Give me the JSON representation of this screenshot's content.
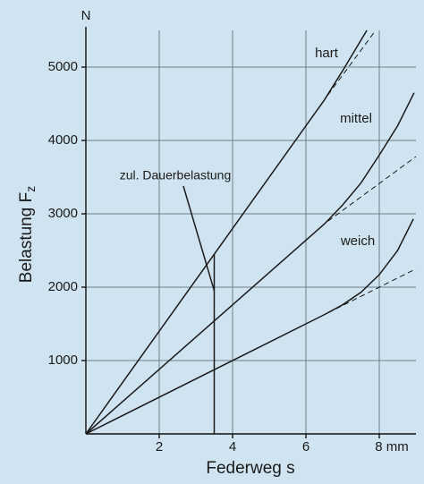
{
  "chart_data": {
    "type": "line",
    "y_unit": "N",
    "x_label": "Federweg s",
    "y_label": "Belastung F",
    "y_label_sub": "z",
    "xlim": [
      0,
      9
    ],
    "ylim": [
      0,
      5500
    ],
    "xticks": [
      2,
      4,
      6,
      {
        "value": 8,
        "label": "8 mm"
      }
    ],
    "yticks": [
      1000,
      2000,
      3000,
      4000,
      5000
    ],
    "grid": true,
    "series": [
      {
        "name": "hart",
        "color": "#1a1a1a",
        "x": [
          0,
          6.5,
          7,
          7.66
        ],
        "values": [
          0,
          4550,
          4950,
          5500
        ],
        "dashed": {
          "x": [
            6.6,
            7.9
          ],
          "values": [
            4620,
            5500
          ]
        }
      },
      {
        "name": "mittel",
        "color": "#1a1a1a",
        "x": [
          0,
          6.5,
          7,
          7.5,
          8,
          8.5,
          8.95
        ],
        "values": [
          0,
          2860,
          3120,
          3420,
          3800,
          4200,
          4650
        ],
        "dashed": {
          "x": [
            6.6,
            9
          ],
          "values": [
            2900,
            3780
          ]
        }
      },
      {
        "name": "weich",
        "color": "#1a1a1a",
        "x": [
          0,
          6.5,
          7,
          7.5,
          8,
          8.5,
          8.93
        ],
        "values": [
          0,
          1625,
          1760,
          1930,
          2170,
          2500,
          2930
        ],
        "dashed": {
          "x": [
            6.6,
            9
          ],
          "values": [
            1650,
            2250
          ]
        }
      }
    ],
    "annotation": {
      "text": "zul. Dauerbelastung",
      "x": 3.5,
      "y": 2450,
      "pointer_y": 1950
    }
  }
}
